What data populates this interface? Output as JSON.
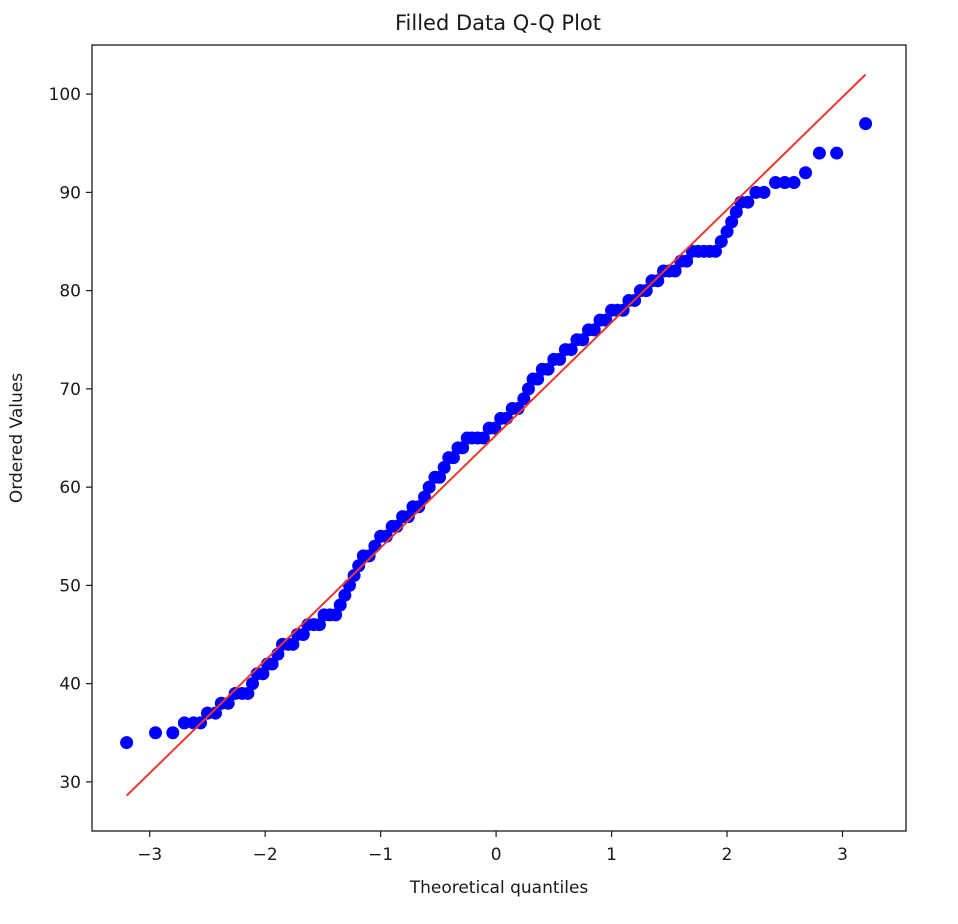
{
  "chart_data": {
    "type": "scatter",
    "title": "Filled Data Q-Q Plot",
    "xlabel": "Theoretical quantiles",
    "ylabel": "Ordered Values",
    "xlim": [
      -3.5,
      3.55
    ],
    "ylim": [
      25,
      105
    ],
    "grid": false,
    "x_ticks": [
      -3,
      -2,
      -1,
      0,
      1,
      2,
      3
    ],
    "x_tick_labels": [
      "−3",
      "−2",
      "−1",
      "0",
      "1",
      "2",
      "3"
    ],
    "y_ticks": [
      30,
      40,
      50,
      60,
      70,
      80,
      90,
      100
    ],
    "y_tick_labels": [
      "30",
      "40",
      "50",
      "60",
      "70",
      "80",
      "90",
      "100"
    ],
    "series": [
      {
        "kind": "points",
        "color": "#0000ff",
        "points": [
          [
            -3.2,
            34
          ],
          [
            -2.95,
            35
          ],
          [
            -2.8,
            35
          ],
          [
            -2.7,
            36
          ],
          [
            -2.62,
            36
          ],
          [
            -2.56,
            36
          ],
          [
            -2.5,
            37
          ],
          [
            -2.43,
            37
          ],
          [
            -2.38,
            38
          ],
          [
            -2.32,
            38
          ],
          [
            -2.26,
            39
          ],
          [
            -2.2,
            39
          ],
          [
            -2.15,
            39
          ],
          [
            -2.11,
            40
          ],
          [
            -2.07,
            41
          ],
          [
            -2.02,
            41
          ],
          [
            -1.98,
            42
          ],
          [
            -1.94,
            42
          ],
          [
            -1.89,
            43
          ],
          [
            -1.85,
            44
          ],
          [
            -1.8,
            44
          ],
          [
            -1.76,
            44
          ],
          [
            -1.72,
            45
          ],
          [
            -1.67,
            45
          ],
          [
            -1.63,
            46
          ],
          [
            -1.58,
            46
          ],
          [
            -1.53,
            46
          ],
          [
            -1.49,
            47
          ],
          [
            -1.44,
            47
          ],
          [
            -1.39,
            47
          ],
          [
            -1.35,
            48
          ],
          [
            -1.31,
            49
          ],
          [
            -1.27,
            50
          ],
          [
            -1.23,
            51
          ],
          [
            -1.19,
            52
          ],
          [
            -1.15,
            53
          ],
          [
            -1.1,
            53
          ],
          [
            -1.05,
            54
          ],
          [
            -1.0,
            55
          ],
          [
            -0.95,
            55
          ],
          [
            -0.9,
            56
          ],
          [
            -0.86,
            56
          ],
          [
            -0.81,
            57
          ],
          [
            -0.76,
            57
          ],
          [
            -0.72,
            58
          ],
          [
            -0.67,
            58
          ],
          [
            -0.62,
            59
          ],
          [
            -0.58,
            60
          ],
          [
            -0.53,
            61
          ],
          [
            -0.49,
            61
          ],
          [
            -0.45,
            62
          ],
          [
            -0.41,
            63
          ],
          [
            -0.37,
            63
          ],
          [
            -0.33,
            64
          ],
          [
            -0.29,
            64
          ],
          [
            -0.25,
            65
          ],
          [
            -0.21,
            65
          ],
          [
            -0.16,
            65
          ],
          [
            -0.11,
            65
          ],
          [
            -0.06,
            66
          ],
          [
            -0.01,
            66
          ],
          [
            0.04,
            67
          ],
          [
            0.09,
            67
          ],
          [
            0.14,
            68
          ],
          [
            0.19,
            68
          ],
          [
            0.24,
            69
          ],
          [
            0.28,
            70
          ],
          [
            0.32,
            71
          ],
          [
            0.36,
            71
          ],
          [
            0.4,
            72
          ],
          [
            0.45,
            72
          ],
          [
            0.5,
            73
          ],
          [
            0.55,
            73
          ],
          [
            0.6,
            74
          ],
          [
            0.65,
            74
          ],
          [
            0.7,
            75
          ],
          [
            0.75,
            75
          ],
          [
            0.8,
            76
          ],
          [
            0.85,
            76
          ],
          [
            0.9,
            77
          ],
          [
            0.95,
            77
          ],
          [
            1.0,
            78
          ],
          [
            1.05,
            78
          ],
          [
            1.1,
            78
          ],
          [
            1.15,
            79
          ],
          [
            1.2,
            79
          ],
          [
            1.25,
            80
          ],
          [
            1.3,
            80
          ],
          [
            1.35,
            81
          ],
          [
            1.4,
            81
          ],
          [
            1.45,
            82
          ],
          [
            1.5,
            82
          ],
          [
            1.55,
            82
          ],
          [
            1.6,
            83
          ],
          [
            1.65,
            83
          ],
          [
            1.7,
            84
          ],
          [
            1.75,
            84
          ],
          [
            1.8,
            84
          ],
          [
            1.85,
            84
          ],
          [
            1.9,
            84
          ],
          [
            1.95,
            85
          ],
          [
            2.0,
            86
          ],
          [
            2.04,
            87
          ],
          [
            2.08,
            88
          ],
          [
            2.12,
            89
          ],
          [
            2.18,
            89
          ],
          [
            2.25,
            90
          ],
          [
            2.32,
            90
          ],
          [
            2.42,
            91
          ],
          [
            2.5,
            91
          ],
          [
            2.58,
            91
          ],
          [
            2.68,
            92
          ],
          [
            2.8,
            94
          ],
          [
            2.95,
            94
          ],
          [
            3.2,
            97
          ]
        ]
      },
      {
        "kind": "line",
        "color": "#e8392b",
        "points": [
          [
            -3.2,
            28.6
          ],
          [
            3.2,
            102
          ]
        ]
      }
    ]
  }
}
